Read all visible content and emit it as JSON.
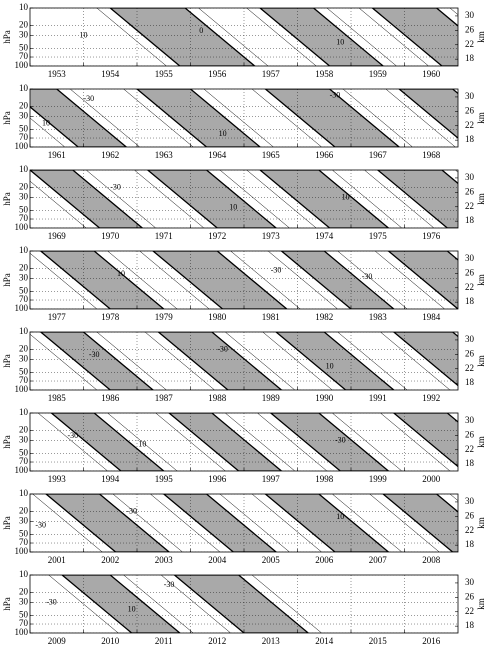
{
  "chart_data": [
    {
      "type": "contour",
      "xlim": [
        1953,
        1961
      ],
      "years": [
        1953,
        1954,
        1955,
        1956,
        1957,
        1958,
        1959,
        1960
      ],
      "ylim": [
        100,
        10
      ],
      "yticks": [
        10,
        20,
        30,
        50,
        70,
        100
      ],
      "log": true,
      "ylabel": "hPa",
      "y2lim": [
        16.1,
        32.2
      ],
      "y2ticks": [
        30,
        26,
        22,
        18
      ],
      "y2label": "km",
      "grid": true,
      "shade_color": "#a9a9a9",
      "westerly_phases": [
        [
          1954.5,
          1955.9
        ],
        [
          1957.3,
          1958.3
        ],
        [
          1959.4,
          1960.6
        ]
      ],
      "contour_labels": [
        {
          "x": 1954.0,
          "y": 30,
          "value": 10
        },
        {
          "x": 1956.2,
          "y": 25,
          "value": 0
        },
        {
          "x": 1958.8,
          "y": 40,
          "value": 10
        }
      ]
    },
    {
      "type": "contour",
      "xlim": [
        1961,
        1969
      ],
      "years": [
        1961,
        1962,
        1963,
        1964,
        1965,
        1966,
        1967,
        1968
      ],
      "ylim": [
        100,
        10
      ],
      "yticks": [
        10,
        20,
        30,
        50,
        70,
        100
      ],
      "log": true,
      "ylabel": "hPa",
      "y2lim": [
        16.1,
        32.2
      ],
      "y2ticks": [
        30,
        26,
        22,
        18
      ],
      "y2label": "km",
      "grid": true,
      "shade_color": "#a9a9a9",
      "westerly_phases": [
        [
          1960.6,
          1961.5
        ],
        [
          1963.0,
          1964.0
        ],
        [
          1965.4,
          1966.6
        ],
        [
          1967.9,
          1968.9
        ]
      ],
      "contour_labels": [
        {
          "x": 1962.1,
          "y": 15,
          "value": -30
        },
        {
          "x": 1961.3,
          "y": 40,
          "value": 10
        },
        {
          "x": 1964.6,
          "y": 60,
          "value": 10
        },
        {
          "x": 1966.7,
          "y": 13,
          "value": -30
        }
      ]
    },
    {
      "type": "contour",
      "xlim": [
        1969,
        1977
      ],
      "years": [
        1969,
        1970,
        1971,
        1972,
        1973,
        1974,
        1975,
        1976
      ],
      "ylim": [
        100,
        10
      ],
      "yticks": [
        10,
        20,
        30,
        50,
        70,
        100
      ],
      "log": true,
      "ylabel": "hPa",
      "y2lim": [
        16.1,
        32.2
      ],
      "y2ticks": [
        30,
        26,
        22,
        18
      ],
      "y2label": "km",
      "grid": true,
      "shade_color": "#a9a9a9",
      "westerly_phases": [
        [
          1969.0,
          1969.8
        ],
        [
          1971.2,
          1972.3
        ],
        [
          1973.3,
          1974.4
        ],
        [
          1975.5,
          1976.7
        ]
      ],
      "contour_labels": [
        {
          "x": 1970.6,
          "y": 20,
          "value": -30
        },
        {
          "x": 1972.8,
          "y": 45,
          "value": 10
        },
        {
          "x": 1974.9,
          "y": 30,
          "value": 10
        }
      ]
    },
    {
      "type": "contour",
      "xlim": [
        1977,
        1985
      ],
      "years": [
        1977,
        1978,
        1979,
        1980,
        1981,
        1982,
        1983,
        1984
      ],
      "ylim": [
        100,
        10
      ],
      "yticks": [
        10,
        20,
        30,
        50,
        70,
        100
      ],
      "log": true,
      "ylabel": "hPa",
      "y2lim": [
        16.1,
        32.2
      ],
      "y2ticks": [
        30,
        26,
        22,
        18
      ],
      "y2label": "km",
      "grid": true,
      "shade_color": "#a9a9a9",
      "westerly_phases": [
        [
          1977.2,
          1978.2
        ],
        [
          1979.3,
          1980.5
        ],
        [
          1981.7,
          1982.5
        ],
        [
          1983.7,
          1984.8
        ]
      ],
      "contour_labels": [
        {
          "x": 1978.7,
          "y": 25,
          "value": 10
        },
        {
          "x": 1981.6,
          "y": 22,
          "value": -30
        },
        {
          "x": 1983.3,
          "y": 28,
          "value": -30
        }
      ]
    },
    {
      "type": "contour",
      "xlim": [
        1985,
        1993
      ],
      "years": [
        1985,
        1986,
        1987,
        1988,
        1989,
        1990,
        1991,
        1992
      ],
      "ylim": [
        100,
        10
      ],
      "yticks": [
        10,
        20,
        30,
        50,
        70,
        100
      ],
      "log": true,
      "ylabel": "hPa",
      "y2lim": [
        16.1,
        32.2
      ],
      "y2ticks": [
        30,
        26,
        22,
        18
      ],
      "y2label": "km",
      "grid": true,
      "shade_color": "#a9a9a9",
      "westerly_phases": [
        [
          1985.2,
          1986.0
        ],
        [
          1987.4,
          1988.4
        ],
        [
          1989.6,
          1990.5
        ],
        [
          1991.8,
          1992.9
        ]
      ],
      "contour_labels": [
        {
          "x": 1986.2,
          "y": 25,
          "value": -30
        },
        {
          "x": 1988.6,
          "y": 20,
          "value": -30
        },
        {
          "x": 1990.6,
          "y": 40,
          "value": 10
        }
      ]
    },
    {
      "type": "contour",
      "xlim": [
        1993,
        2001
      ],
      "years": [
        1993,
        1994,
        1995,
        1996,
        1997,
        1998,
        1999,
        2000
      ],
      "ylim": [
        100,
        10
      ],
      "yticks": [
        10,
        20,
        30,
        50,
        70,
        100
      ],
      "log": true,
      "ylabel": "hPa",
      "y2lim": [
        16.1,
        32.2
      ],
      "y2ticks": [
        30,
        26,
        22,
        18
      ],
      "y2label": "km",
      "grid": true,
      "shade_color": "#a9a9a9",
      "westerly_phases": [
        [
          1993.4,
          1994.2
        ],
        [
          1995.6,
          1996.4
        ],
        [
          1997.5,
          1998.4
        ],
        [
          1999.8,
          2000.8
        ]
      ],
      "contour_labels": [
        {
          "x": 1993.8,
          "y": 25,
          "value": -30
        },
        {
          "x": 1995.1,
          "y": 35,
          "value": 10
        },
        {
          "x": 1998.8,
          "y": 30,
          "value": -30
        }
      ]
    },
    {
      "type": "contour",
      "xlim": [
        2001,
        2009
      ],
      "years": [
        2001,
        2002,
        2003,
        2004,
        2005,
        2006,
        2007,
        2008
      ],
      "ylim": [
        100,
        10
      ],
      "yticks": [
        10,
        20,
        30,
        50,
        70,
        100
      ],
      "log": true,
      "ylabel": "hPa",
      "y2lim": [
        16.1,
        32.2
      ],
      "y2ticks": [
        30,
        26,
        22,
        18
      ],
      "y2label": "km",
      "grid": true,
      "shade_color": "#a9a9a9",
      "westerly_phases": [
        [
          2001.3,
          2002.3
        ],
        [
          2003.5,
          2004.3
        ],
        [
          2005.4,
          2006.4
        ],
        [
          2007.6,
          2008.6
        ]
      ],
      "contour_labels": [
        {
          "x": 2001.2,
          "y": 35,
          "value": -30
        },
        {
          "x": 2002.9,
          "y": 20,
          "value": -30
        },
        {
          "x": 2006.8,
          "y": 25,
          "value": 10
        }
      ]
    },
    {
      "type": "contour",
      "xlim": [
        2009,
        2017
      ],
      "years": [
        2009,
        2010,
        2011,
        2012,
        2013,
        2014,
        2015,
        2016
      ],
      "ylim": [
        100,
        10
      ],
      "yticks": [
        10,
        20,
        30,
        50,
        70,
        100
      ],
      "log": true,
      "ylabel": "hPa",
      "y2lim": [
        16.1,
        32.2
      ],
      "y2ticks": [
        30,
        26,
        22,
        18
      ],
      "y2label": "km",
      "grid": true,
      "shade_color": "#a9a9a9",
      "westerly_phases": [
        [
          2009.6,
          2010.5
        ],
        [
          2011.7,
          2012.9
        ]
      ],
      "contour_labels": [
        {
          "x": 2009.4,
          "y": 30,
          "value": -30
        },
        {
          "x": 2010.9,
          "y": 40,
          "value": 10
        },
        {
          "x": 2011.6,
          "y": 15,
          "value": -30
        }
      ]
    }
  ]
}
